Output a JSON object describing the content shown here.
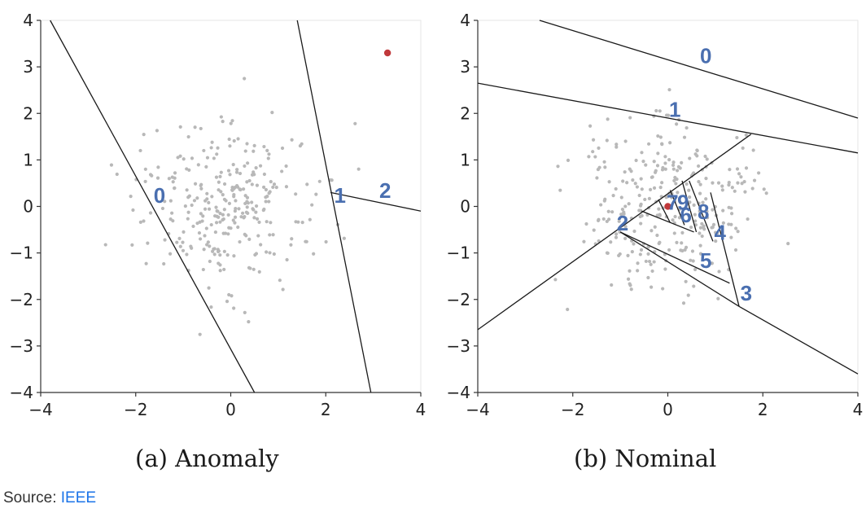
{
  "figure": {
    "caption_a": "(a) Anomaly",
    "caption_b": "(b) Nominal",
    "source_prefix": "Source:",
    "source_link": "IEEE"
  },
  "colors": {
    "normal_point": "#b8b8b8",
    "anomaly_point": "#c0393b",
    "partition_line": "#1a1a1a",
    "cut_label": "#4a6fb0",
    "axes": "#333333"
  },
  "chart_data": [
    {
      "type": "scatter",
      "title": "",
      "xlim": [
        -4,
        4
      ],
      "ylim": [
        -4,
        4
      ],
      "xticks": [
        -4,
        -2,
        0,
        2,
        4
      ],
      "yticks": [
        -4,
        -3,
        -2,
        -1,
        0,
        1,
        2,
        3,
        4
      ],
      "grid": false,
      "anomaly_point": [
        3.3,
        3.3
      ],
      "cuts": [
        {
          "label": "0",
          "from": [
            -3.8,
            4.0
          ],
          "to": [
            0.5,
            -4.0
          ],
          "label_at": [
            -1.5,
            0.2
          ]
        },
        {
          "label": "1",
          "from": [
            1.4,
            4.0
          ],
          "to": [
            2.95,
            -4.0
          ],
          "label_at": [
            2.3,
            0.2
          ]
        },
        {
          "label": "2",
          "from": [
            2.1,
            0.3
          ],
          "to": [
            4.0,
            -0.1
          ],
          "label_at": [
            3.25,
            0.3
          ]
        }
      ],
      "annotations": [
        "0",
        "1",
        "2"
      ]
    },
    {
      "type": "scatter",
      "title": "",
      "xlim": [
        -4,
        4
      ],
      "ylim": [
        -4,
        4
      ],
      "xticks": [
        -4,
        -2,
        0,
        2,
        4
      ],
      "yticks": [
        -4,
        -3,
        -2,
        -1,
        0,
        1,
        2,
        3,
        4
      ],
      "grid": false,
      "anomaly_point": [
        0.0,
        0.0
      ],
      "cuts": [
        {
          "label": "0",
          "from": [
            -2.7,
            4.0
          ],
          "to": [
            4.0,
            1.9
          ],
          "label_at": [
            0.8,
            3.2
          ]
        },
        {
          "label": "1",
          "from": [
            -4.0,
            2.65
          ],
          "to": [
            4.0,
            1.15
          ],
          "label_at": [
            0.15,
            2.05
          ]
        },
        {
          "label": "2",
          "from": [
            -4.0,
            -2.65
          ],
          "to": [
            1.75,
            1.55
          ],
          "label_at": [
            -0.95,
            -0.4
          ]
        },
        {
          "label": "3",
          "from": [
            0.9,
            0.3
          ],
          "to": [
            1.5,
            -2.15
          ],
          "label_at": [
            1.65,
            -1.9
          ]
        },
        {
          "label": "4",
          "from": [
            0.45,
            0.55
          ],
          "to": [
            0.95,
            -0.75
          ],
          "label_at": [
            1.1,
            -0.6
          ]
        },
        {
          "label": "5",
          "from": [
            -1.0,
            -0.55
          ],
          "to": [
            1.3,
            -1.65
          ],
          "label_at": [
            0.8,
            -1.2
          ]
        },
        {
          "label": "6",
          "from": [
            -0.55,
            -0.1
          ],
          "to": [
            0.55,
            -0.55
          ],
          "label_at": [
            0.38,
            -0.22
          ]
        },
        {
          "label": "7",
          "from": [
            -0.2,
            0.15
          ],
          "to": [
            0.05,
            -0.35
          ],
          "label_at": [
            0.1,
            0.05
          ]
        },
        {
          "label": "8",
          "from": [
            0.3,
            0.55
          ],
          "to": [
            0.6,
            -0.55
          ],
          "label_at": [
            0.75,
            -0.15
          ]
        },
        {
          "label": "9",
          "from": [
            0.05,
            0.35
          ],
          "to": [
            0.35,
            -0.4
          ],
          "label_at": [
            0.32,
            0.05
          ]
        },
        {
          "label": "",
          "from": [
            -1.0,
            -0.55
          ],
          "to": [
            1.5,
            -2.15
          ]
        },
        {
          "label": "",
          "from": [
            1.5,
            -2.15
          ],
          "to": [
            4.0,
            -3.6
          ]
        }
      ],
      "annotations": [
        "0",
        "1",
        "2",
        "3",
        "4",
        "5",
        "6",
        "7",
        "8",
        "9"
      ]
    }
  ]
}
